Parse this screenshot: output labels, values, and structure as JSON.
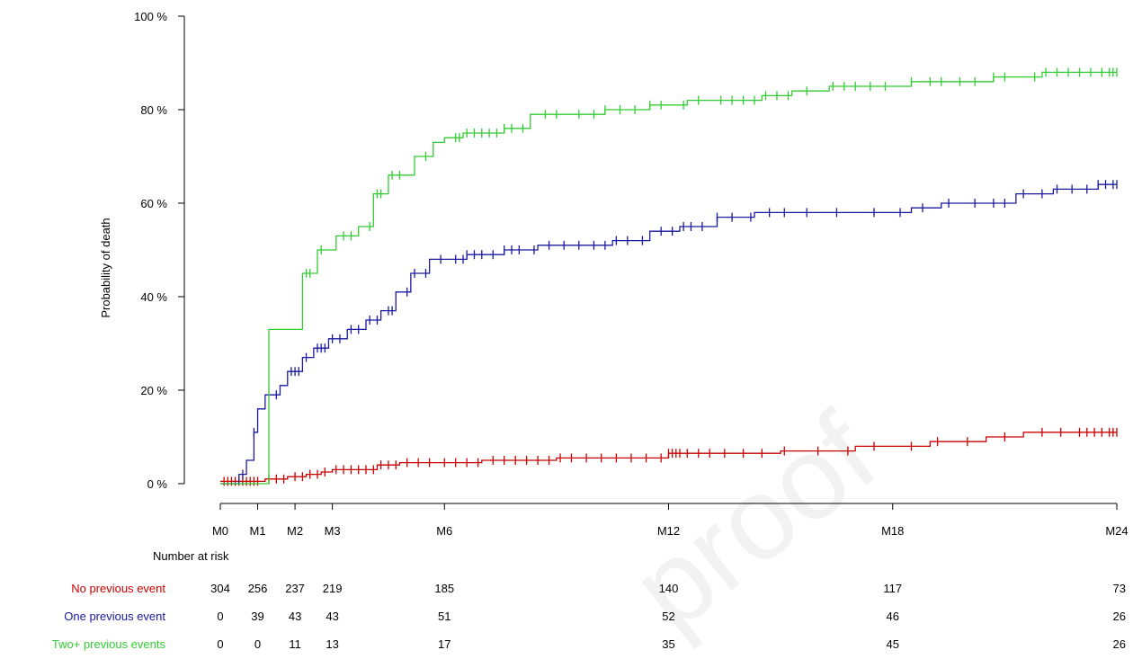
{
  "chart_data": {
    "type": "line",
    "title": "",
    "xlabel": "",
    "ylabel": "Probability of death",
    "xlim": [
      0,
      24
    ],
    "ylim": [
      0,
      100
    ],
    "y_ticks": [
      0,
      20,
      40,
      60,
      80,
      100
    ],
    "y_tick_labels": [
      "0 %",
      "20 %",
      "40 %",
      "60 %",
      "80 %",
      "100 %"
    ],
    "x_ticks": [
      0,
      1,
      2,
      3,
      6,
      12,
      18,
      24
    ],
    "x_tick_labels": [
      "M0",
      "M1",
      "M2",
      "M3",
      "M6",
      "M12",
      "M18",
      "M24"
    ],
    "grid": false,
    "legend": "none",
    "risk_table": {
      "title": "Number at risk",
      "rows": [
        {
          "label": "No previous event",
          "values": [
            "304",
            "256",
            "237",
            "219",
            "185",
            "140",
            "117",
            "73"
          ]
        },
        {
          "label": "One previous event",
          "values": [
            "0",
            "39",
            "43",
            "43",
            "51",
            "52",
            "46",
            "26"
          ]
        },
        {
          "label": "Two+ previous events",
          "values": [
            "0",
            "0",
            "11",
            "13",
            "17",
            "35",
            "45",
            "26"
          ]
        }
      ]
    },
    "series": [
      {
        "color": "#cc0000",
        "steps": [
          [
            0,
            0.5
          ],
          [
            1.2,
            1
          ],
          [
            1.8,
            1.5
          ],
          [
            2.3,
            2
          ],
          [
            2.7,
            2.5
          ],
          [
            3,
            3
          ],
          [
            4.2,
            4
          ],
          [
            4.8,
            4.5
          ],
          [
            7,
            5
          ],
          [
            9,
            5.5
          ],
          [
            12,
            6.5
          ],
          [
            15,
            7
          ],
          [
            17,
            8
          ],
          [
            19,
            9
          ],
          [
            20.5,
            10
          ],
          [
            21.5,
            11
          ],
          [
            24,
            11
          ]
        ],
        "censor_times": [
          0.1,
          0.2,
          0.3,
          0.4,
          0.5,
          0.6,
          0.7,
          0.8,
          0.9,
          1.0,
          1.3,
          1.5,
          1.7,
          2.0,
          2.2,
          2.4,
          2.6,
          2.8,
          3.1,
          3.3,
          3.5,
          3.7,
          3.9,
          4.1,
          4.3,
          4.5,
          4.7,
          5.0,
          5.3,
          5.6,
          6.0,
          6.3,
          6.6,
          6.9,
          7.3,
          7.6,
          7.9,
          8.2,
          8.5,
          8.8,
          9.1,
          9.4,
          9.8,
          10.2,
          10.6,
          11.0,
          11.4,
          11.8,
          12.0,
          12.1,
          12.2,
          12.3,
          12.5,
          12.8,
          13.1,
          13.5,
          14.0,
          14.5,
          15.1,
          16.0,
          16.8,
          17.5,
          18.5,
          19.2,
          20.0,
          21.0,
          22.0,
          22.5,
          23.0,
          23.2,
          23.4,
          23.6,
          23.8,
          23.9,
          24.0
        ]
      },
      {
        "color": "#1a1aa0",
        "steps": [
          [
            0,
            0
          ],
          [
            0.5,
            2
          ],
          [
            0.7,
            5
          ],
          [
            0.9,
            11
          ],
          [
            1.0,
            16
          ],
          [
            1.2,
            19
          ],
          [
            1.6,
            21
          ],
          [
            1.8,
            24
          ],
          [
            2.2,
            27
          ],
          [
            2.5,
            29
          ],
          [
            2.9,
            31
          ],
          [
            3.4,
            33
          ],
          [
            3.9,
            35
          ],
          [
            4.3,
            37
          ],
          [
            4.7,
            41
          ],
          [
            5.1,
            45
          ],
          [
            5.6,
            48
          ],
          [
            6.6,
            49
          ],
          [
            7.6,
            50
          ],
          [
            8.5,
            51
          ],
          [
            10.5,
            52
          ],
          [
            11.5,
            54
          ],
          [
            12.3,
            55
          ],
          [
            13.3,
            57
          ],
          [
            14.3,
            58
          ],
          [
            18.5,
            59
          ],
          [
            19.3,
            60
          ],
          [
            21.3,
            62
          ],
          [
            22.3,
            63
          ],
          [
            23.5,
            64
          ],
          [
            24,
            64
          ]
        ],
        "censor_times": [
          0.6,
          0.9,
          1.5,
          1.9,
          2.0,
          2.1,
          2.3,
          2.6,
          2.7,
          2.8,
          3.0,
          3.2,
          3.5,
          3.7,
          4.0,
          4.2,
          4.5,
          4.6,
          5.0,
          5.2,
          5.5,
          5.9,
          6.3,
          6.5,
          6.6,
          6.8,
          7.0,
          7.3,
          7.6,
          7.8,
          8.0,
          8.4,
          8.8,
          9.2,
          9.6,
          10.0,
          10.3,
          10.6,
          10.9,
          11.3,
          11.8,
          12.1,
          12.4,
          12.6,
          12.9,
          13.3,
          13.7,
          14.2,
          14.7,
          15.1,
          15.7,
          16.5,
          17.5,
          18.2,
          18.8,
          19.5,
          20.2,
          20.7,
          21.0,
          21.5,
          22.0,
          22.4,
          22.8,
          23.2,
          23.5,
          23.7,
          23.9,
          24.0
        ]
      },
      {
        "color": "#33cc33",
        "steps": [
          [
            0,
            0
          ],
          [
            1.3,
            33
          ],
          [
            2.2,
            45
          ],
          [
            2.6,
            50
          ],
          [
            3.1,
            53
          ],
          [
            3.7,
            55
          ],
          [
            4.1,
            62
          ],
          [
            4.5,
            66
          ],
          [
            5.2,
            70
          ],
          [
            5.7,
            73
          ],
          [
            6.0,
            74
          ],
          [
            6.5,
            75
          ],
          [
            7.6,
            76
          ],
          [
            8.3,
            79
          ],
          [
            9.5,
            79
          ],
          [
            10.3,
            80
          ],
          [
            11.5,
            81
          ],
          [
            12.5,
            82
          ],
          [
            14.5,
            83
          ],
          [
            15.3,
            84
          ],
          [
            16.3,
            85
          ],
          [
            18.5,
            86
          ],
          [
            20.7,
            87
          ],
          [
            22.0,
            88
          ],
          [
            24,
            88
          ]
        ],
        "censor_times": [
          2.3,
          2.4,
          2.7,
          3.3,
          3.5,
          4.0,
          4.2,
          4.3,
          4.6,
          4.8,
          5.5,
          6.3,
          6.4,
          6.6,
          6.8,
          7.0,
          7.2,
          7.4,
          7.6,
          7.8,
          8.1,
          8.7,
          9.0,
          9.6,
          10.0,
          10.3,
          10.7,
          11.1,
          11.5,
          11.8,
          12.4,
          12.8,
          13.4,
          13.7,
          14.0,
          14.3,
          14.6,
          14.9,
          15.2,
          15.7,
          16.4,
          16.7,
          17.0,
          17.4,
          17.8,
          18.5,
          19.0,
          19.3,
          19.8,
          20.2,
          20.7,
          21.0,
          21.8,
          22.1,
          22.4,
          22.7,
          23.0,
          23.3,
          23.6,
          23.8,
          23.9,
          24.0
        ]
      }
    ]
  }
}
